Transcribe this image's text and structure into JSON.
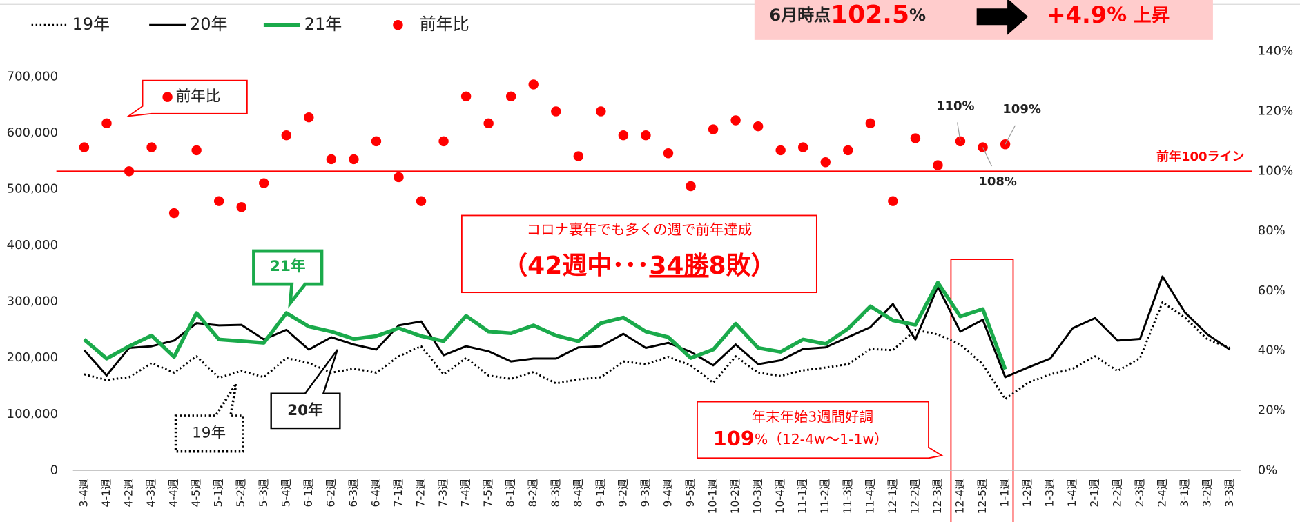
{
  "chart_data": {
    "type": "line",
    "categories": [
      "3-4週",
      "4-1週",
      "4-2週",
      "4-3週",
      "4-4週",
      "4-5週",
      "5-1週",
      "5-2週",
      "5-3週",
      "5-4週",
      "6-1週",
      "6-2週",
      "6-3週",
      "6-4週",
      "7-1週",
      "7-2週",
      "7-3週",
      "7-4週",
      "7-5週",
      "8-1週",
      "8-2週",
      "8-3週",
      "8-4週",
      "9-1週",
      "9-2週",
      "9-3週",
      "9-4週",
      "9-5週",
      "10-1週",
      "10-2週",
      "10-3週",
      "10-4週",
      "11-1週",
      "11-2週",
      "11-3週",
      "11-4週",
      "12-1週",
      "12-2週",
      "12-3週",
      "12-4週",
      "12-5週",
      "1-1週",
      "1-2週",
      "1-3週",
      "1-4週",
      "2-1週",
      "2-2週",
      "2-3週",
      "2-4週",
      "3-1週",
      "3-2週",
      "3-3週"
    ],
    "series": [
      {
        "name": "19年",
        "color": "#000000",
        "line_style": "dotted",
        "values": [
          171000,
          161000,
          166000,
          191000,
          174000,
          203000,
          165000,
          177000,
          166000,
          200000,
          191000,
          174000,
          181000,
          174000,
          203000,
          221000,
          171000,
          200000,
          169000,
          163000,
          175000,
          155000,
          162000,
          166000,
          194000,
          189000,
          202000,
          187000,
          156000,
          203000,
          174000,
          168000,
          178000,
          183000,
          189000,
          216000,
          214000,
          250000,
          242000,
          224000,
          189000,
          127000,
          156000,
          171000,
          181000,
          203000,
          177000,
          200000,
          299000,
          272000,
          233000,
          218000
        ]
      },
      {
        "name": "20年",
        "color": "#000000",
        "line_style": "solid",
        "values": [
          214000,
          169000,
          218000,
          221000,
          231000,
          262000,
          258000,
          259000,
          233000,
          250000,
          215000,
          237000,
          224000,
          215000,
          258000,
          265000,
          205000,
          221000,
          212000,
          194000,
          199000,
          199000,
          219000,
          221000,
          243000,
          218000,
          227000,
          211000,
          187000,
          224000,
          189000,
          196000,
          216000,
          219000,
          237000,
          255000,
          296000,
          233000,
          327000,
          247000,
          268000,
          166000,
          183000,
          199000,
          253000,
          271000,
          231000,
          234000,
          345000,
          281000,
          242000,
          215000
        ]
      },
      {
        "name": "21年",
        "color": "#1aaa4b",
        "line_style": "solid",
        "values": [
          233000,
          199000,
          221000,
          240000,
          202000,
          280000,
          233000,
          230000,
          227000,
          280000,
          256000,
          247000,
          234000,
          239000,
          253000,
          239000,
          230000,
          275000,
          247000,
          244000,
          258000,
          240000,
          230000,
          262000,
          272000,
          247000,
          237000,
          200000,
          215000,
          261000,
          218000,
          211000,
          233000,
          225000,
          252000,
          292000,
          267000,
          259000,
          334000,
          274000,
          287000,
          180000,
          null,
          null,
          null,
          null,
          null,
          null,
          null,
          null,
          null,
          null
        ]
      },
      {
        "name": "前年比",
        "color": "#ff0000",
        "type": "scatter",
        "axis": "y2",
        "values": [
          108,
          116,
          100,
          108,
          86,
          107,
          90,
          88,
          96,
          112,
          118,
          104,
          104,
          110,
          98,
          90,
          110,
          125,
          116,
          125,
          129,
          120,
          105,
          120,
          112,
          112,
          106,
          95,
          114,
          117,
          115,
          107,
          108,
          103,
          107,
          116,
          90,
          111,
          102,
          110,
          108,
          109,
          null,
          null,
          null,
          null,
          null,
          null,
          null,
          null,
          null,
          null
        ],
        "value_labels": [
          null,
          null,
          null,
          null,
          null,
          null,
          null,
          null,
          null,
          null,
          null,
          null,
          null,
          null,
          null,
          null,
          null,
          null,
          null,
          null,
          null,
          null,
          null,
          null,
          null,
          null,
          null,
          null,
          null,
          null,
          null,
          null,
          null,
          null,
          null,
          null,
          null,
          null,
          null,
          "110%",
          "108%",
          "109%",
          null,
          null,
          null,
          null,
          null,
          null,
          null,
          null,
          null,
          null
        ]
      }
    ],
    "ylim": [
      0,
      745000
    ],
    "yticks": [
      0,
      {
        "value": 100000,
        "label": "100,000"
      },
      {
        "value": 200000,
        "label": "200,000"
      },
      {
        "value": 300000,
        "label": "300,000"
      },
      {
        "value": 400000,
        "label": "400,000"
      },
      {
        "value": 500000,
        "label": "500,000"
      },
      {
        "value": 600000,
        "label": "600,000"
      },
      {
        "value": 700000,
        "label": "700,000"
      }
    ],
    "y2lim": [
      0,
      140
    ],
    "y2ticks": [
      {
        "value": 0,
        "label": "0%"
      },
      {
        "value": 20,
        "label": "20%"
      },
      {
        "value": 40,
        "label": "40%"
      },
      {
        "value": 60,
        "label": "60%"
      },
      {
        "value": 80,
        "label": "80%"
      },
      {
        "value": 100,
        "label": "100%"
      },
      {
        "value": 120,
        "label": "120%"
      },
      {
        "value": 140,
        "label": "140%"
      }
    ],
    "reference_line": {
      "value": 100,
      "label": "前年100ライン",
      "axis": "y2",
      "color": "#ff0000"
    },
    "legend": "top-left",
    "banner": {
      "prefix": "6月時点",
      "value": "102.5",
      "unit": "%",
      "change": "+4.9",
      "change_unit": "%",
      "suffix": " 上昇"
    },
    "annotations": {
      "ratio": "前年比",
      "y21": "21年",
      "y20": "20年",
      "y19": "19年",
      "summary_title": "コロナ裏年でも多くの週で前年達成",
      "summary_a": "（42週中･･･",
      "summary_b": "34勝",
      "summary_c": "8敗）",
      "yearend_title": "年末年始3週間好調",
      "yearend_value": "109",
      "yearend_rest": "%（12-4w～1-1w）"
    }
  }
}
